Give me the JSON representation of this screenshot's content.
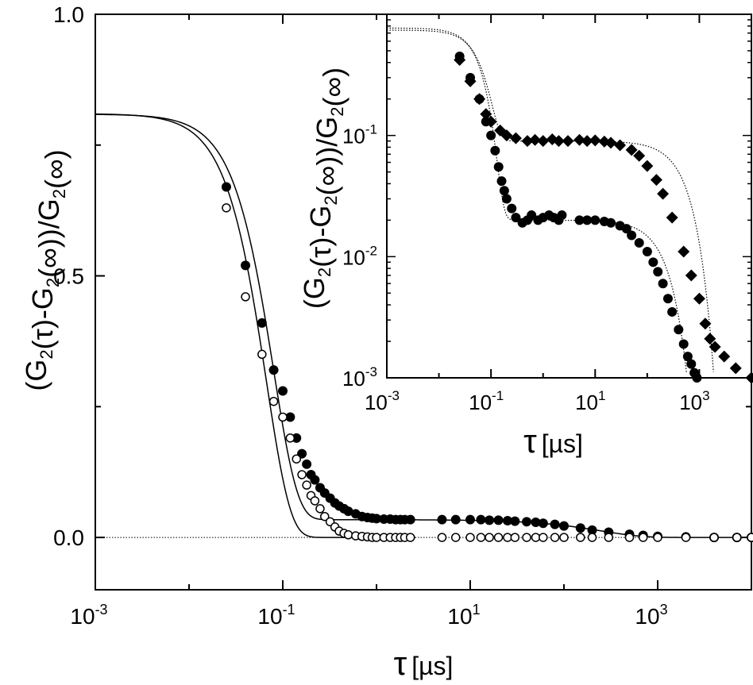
{
  "chart_data": [
    {
      "type": "scatter",
      "xscale": "log",
      "xlim": [
        0.001,
        10000
      ],
      "ylim": [
        -0.1,
        1.0
      ],
      "xlabel": "τ [µs]",
      "ylabel": "(G2(τ)-G2(∞))/G2(∞)",
      "x_ticks": [
        {
          "base": "10",
          "exp": "-3",
          "value": 0.001
        },
        {
          "base": "10",
          "exp": "-1",
          "value": 0.1
        },
        {
          "base": "10",
          "exp": "1",
          "value": 10
        },
        {
          "base": "10",
          "exp": "3",
          "value": 1000
        }
      ],
      "y_ticks": [
        {
          "label": "0.0",
          "value": 0
        },
        {
          "label": "0.5",
          "value": 0.5
        },
        {
          "label": "1.0",
          "value": 1.0
        }
      ],
      "grid": false,
      "series": [
        {
          "marker": "filled-circle",
          "fit_curve": true,
          "x": [
            0.025,
            0.04,
            0.06,
            0.08,
            0.1,
            0.12,
            0.14,
            0.16,
            0.18,
            0.2,
            0.22,
            0.25,
            0.28,
            0.32,
            0.36,
            0.4,
            0.45,
            0.5,
            0.6,
            0.7,
            0.8,
            0.9,
            1.0,
            1.2,
            1.4,
            1.6,
            1.8,
            2.0,
            2.3,
            5,
            7,
            10,
            13,
            16,
            20,
            25,
            30,
            40,
            50,
            60,
            80,
            100,
            150,
            200,
            300,
            500,
            700,
            1000,
            2000,
            4000,
            7000,
            10000
          ],
          "y": [
            0.67,
            0.52,
            0.41,
            0.32,
            0.28,
            0.23,
            0.19,
            0.16,
            0.14,
            0.12,
            0.11,
            0.095,
            0.085,
            0.075,
            0.066,
            0.06,
            0.055,
            0.05,
            0.045,
            0.04,
            0.038,
            0.037,
            0.036,
            0.035,
            0.035,
            0.034,
            0.034,
            0.034,
            0.034,
            0.034,
            0.034,
            0.034,
            0.034,
            0.033,
            0.033,
            0.032,
            0.031,
            0.03,
            0.029,
            0.027,
            0.025,
            0.022,
            0.018,
            0.014,
            0.01,
            0.006,
            0.004,
            0.002,
            0.001,
            0.0,
            0.0,
            0.0
          ]
        },
        {
          "marker": "open-circle",
          "fit_curve": true,
          "x": [
            0.025,
            0.04,
            0.06,
            0.08,
            0.1,
            0.12,
            0.14,
            0.16,
            0.18,
            0.2,
            0.22,
            0.25,
            0.28,
            0.32,
            0.36,
            0.4,
            0.45,
            0.5,
            0.6,
            0.7,
            0.8,
            0.9,
            1.0,
            1.2,
            1.4,
            1.6,
            1.8,
            2.0,
            2.3,
            5,
            7,
            10,
            13,
            16,
            20,
            25,
            30,
            40,
            50,
            60,
            80,
            100,
            150,
            200,
            300,
            500,
            700,
            1000,
            2000,
            4000,
            7000,
            10000
          ],
          "y": [
            0.63,
            0.46,
            0.35,
            0.26,
            0.23,
            0.19,
            0.15,
            0.12,
            0.1,
            0.08,
            0.07,
            0.055,
            0.04,
            0.03,
            0.02,
            0.012,
            0.008,
            0.005,
            0.003,
            0.002,
            0.001,
            0.0,
            0.0,
            0.0,
            0.0,
            0.0,
            0.0,
            0.0,
            0.0,
            0.0,
            0.0,
            0.0,
            0.0,
            0.0,
            0.0,
            0.0,
            0.0,
            0.0,
            0.0,
            0.0,
            0.0,
            0.0,
            0.0,
            0.0,
            0.0,
            0.0,
            0.0,
            0.0,
            0.0,
            0.0,
            0.0,
            0.0
          ]
        }
      ]
    },
    {
      "type": "scatter",
      "xscale": "log",
      "yscale": "log",
      "xlim": [
        0.001,
        10000
      ],
      "ylim": [
        0.001,
        1.0
      ],
      "xlabel": "τ [µs]",
      "ylabel": "(G2(τ)-G2(∞))/G2(∞)",
      "x_ticks": [
        {
          "base": "10",
          "exp": "-3",
          "value": 0.001
        },
        {
          "base": "10",
          "exp": "-1",
          "value": 0.1
        },
        {
          "base": "10",
          "exp": "1",
          "value": 10
        },
        {
          "base": "10",
          "exp": "3",
          "value": 1000
        }
      ],
      "y_ticks": [
        {
          "base": "10",
          "exp": "-3",
          "value": 0.001
        },
        {
          "base": "10",
          "exp": "-2",
          "value": 0.01
        },
        {
          "base": "10",
          "exp": "-1",
          "value": 0.1
        }
      ],
      "grid": false,
      "series": [
        {
          "marker": "filled-circle",
          "x": [
            0.025,
            0.04,
            0.06,
            0.08,
            0.1,
            0.12,
            0.14,
            0.16,
            0.18,
            0.2,
            0.25,
            0.3,
            0.4,
            0.5,
            0.6,
            0.8,
            1.0,
            1.3,
            1.6,
            2.0,
            2.3,
            5,
            7,
            10,
            15,
            20,
            30,
            40,
            50,
            70,
            100,
            130,
            160,
            200,
            250,
            300,
            400,
            500,
            600,
            700,
            800,
            900,
            1000
          ],
          "y": [
            0.45,
            0.3,
            0.2,
            0.13,
            0.1,
            0.075,
            0.055,
            0.042,
            0.035,
            0.03,
            0.025,
            0.021,
            0.019,
            0.02,
            0.022,
            0.02,
            0.021,
            0.022,
            0.021,
            0.02,
            0.022,
            0.02,
            0.02,
            0.02,
            0.0195,
            0.019,
            0.018,
            0.017,
            0.015,
            0.013,
            0.011,
            0.009,
            0.0075,
            0.006,
            0.0045,
            0.0035,
            0.0025,
            0.0019,
            0.0015,
            0.0013,
            0.0011,
            0.001,
            0.0009
          ]
        },
        {
          "marker": "filled-diamond",
          "x": [
            0.025,
            0.04,
            0.06,
            0.08,
            0.1,
            0.15,
            0.2,
            0.3,
            0.5,
            0.7,
            1.0,
            1.5,
            2.0,
            3.0,
            5,
            7,
            10,
            15,
            20,
            30,
            50,
            70,
            100,
            150,
            200,
            300,
            500,
            700,
            1000,
            1300,
            1600,
            2000,
            3000,
            5000,
            10000
          ],
          "y": [
            0.42,
            0.28,
            0.2,
            0.15,
            0.13,
            0.11,
            0.1,
            0.095,
            0.09,
            0.092,
            0.09,
            0.093,
            0.09,
            0.09,
            0.092,
            0.09,
            0.091,
            0.089,
            0.087,
            0.083,
            0.076,
            0.068,
            0.056,
            0.043,
            0.033,
            0.021,
            0.011,
            0.007,
            0.0045,
            0.0028,
            0.0021,
            0.0018,
            0.0015,
            0.0012,
            0.001
          ]
        }
      ]
    }
  ]
}
